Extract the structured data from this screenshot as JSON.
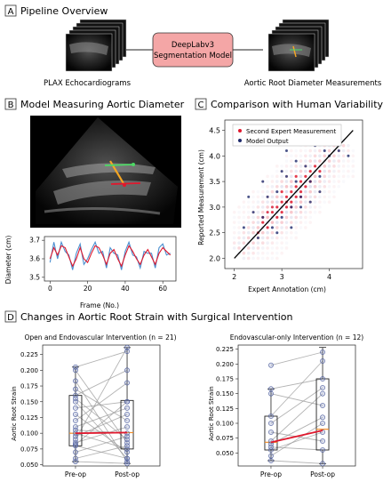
{
  "panelA": {
    "letter": "A",
    "title": "Pipeline Overview",
    "input_label": "PLAX Echocardiograms",
    "model_label": [
      "DeepLabv3",
      "Segmentation Model"
    ],
    "output_label": "Aortic Root Diameter Measurements",
    "model_fill": "#f4a6a6"
  },
  "panelB": {
    "letter": "B",
    "title": "Model Measuring Aortic Diameter",
    "trace_chart": {
      "ylabel": "Diameter (cm)",
      "xlabel": "Frame (No.)",
      "xlim": [
        -3,
        67
      ],
      "ylim": [
        3.48,
        3.72
      ],
      "xticks": [
        0,
        20,
        40,
        60
      ],
      "yticks": [
        3.5,
        3.6,
        3.7
      ],
      "xtick_labels": [
        "0",
        "20",
        "40",
        "60"
      ],
      "ytick_labels": [
        "3.5",
        "3.6",
        "3.7"
      ]
    }
  },
  "panelC": {
    "letter": "C",
    "title": "Comparison with Human Variability",
    "xlabel": "Expert Annotation (cm)",
    "ylabel": "Reported Measurement (cm)",
    "legend": [
      "Second Expert Measurement",
      "Model Output"
    ],
    "xlim": [
      1.8,
      4.7
    ],
    "ylim": [
      1.8,
      4.7
    ],
    "xticks": [
      "2",
      "3",
      "4"
    ],
    "yticks": [
      "2.0",
      "2.5",
      "3.0",
      "3.5",
      "4.0",
      "4.5"
    ],
    "colors": {
      "expert": "#e0182d",
      "model": "#1f2a6b"
    }
  },
  "panelD": {
    "letter": "D",
    "title": "Changes in Aortic Root Strain with Surgical Intervention",
    "left": {
      "title": "Open and Endovascular Intervention (n = 21)",
      "ylabel": "Aortic Root Strain",
      "categories": [
        "Pre-op",
        "Post-op"
      ],
      "yticks": [
        "0.050",
        "0.075",
        "0.100",
        "0.125",
        "0.150",
        "0.175",
        "0.200",
        "0.225"
      ]
    },
    "right": {
      "title": "Endovascular-only Intervention (n = 12)",
      "ylabel": "Aortic Root Strain",
      "categories": [
        "Pre-op",
        "Post-op"
      ],
      "yticks": [
        "0.050",
        "0.075",
        "0.100",
        "0.125",
        "0.150",
        "0.175",
        "0.200",
        "0.225"
      ]
    }
  },
  "chart_data": [
    {
      "type": "line",
      "title": "",
      "xlabel": "Frame (No.)",
      "ylabel": "Diameter (cm)",
      "xlim": [
        -3,
        67
      ],
      "ylim": [
        3.48,
        3.72
      ],
      "series": [
        {
          "color": "#e0182d",
          "x": [
            0,
            2,
            4,
            6,
            8,
            10,
            12,
            14,
            16,
            18,
            20,
            22,
            24,
            26,
            28,
            30,
            32,
            34,
            36,
            38,
            40,
            42,
            44,
            46,
            48,
            50,
            52,
            54,
            56,
            58,
            60,
            62,
            64
          ],
          "y": [
            3.6,
            3.66,
            3.62,
            3.67,
            3.66,
            3.61,
            3.56,
            3.6,
            3.66,
            3.6,
            3.58,
            3.63,
            3.67,
            3.66,
            3.62,
            3.57,
            3.63,
            3.65,
            3.6,
            3.56,
            3.62,
            3.67,
            3.64,
            3.6,
            3.57,
            3.62,
            3.65,
            3.61,
            3.57,
            3.63,
            3.66,
            3.64,
            3.62
          ]
        },
        {
          "color": "#4a8fd0",
          "x": [
            0,
            2,
            4,
            6,
            8,
            10,
            12,
            14,
            16,
            18,
            20,
            22,
            24,
            26,
            28,
            30,
            32,
            34,
            36,
            38,
            40,
            42,
            44,
            46,
            48,
            50,
            52,
            54,
            56,
            58,
            60,
            62,
            64
          ],
          "y": [
            3.58,
            3.69,
            3.6,
            3.69,
            3.64,
            3.62,
            3.54,
            3.63,
            3.68,
            3.57,
            3.6,
            3.65,
            3.69,
            3.63,
            3.64,
            3.55,
            3.66,
            3.63,
            3.62,
            3.54,
            3.64,
            3.69,
            3.62,
            3.61,
            3.55,
            3.64,
            3.63,
            3.63,
            3.55,
            3.66,
            3.68,
            3.62,
            3.63
          ]
        }
      ]
    },
    {
      "type": "scatter",
      "title": "",
      "xlabel": "Expert Annotation (cm)",
      "ylabel": "Reported Measurement (cm)",
      "xlim": [
        1.8,
        4.7
      ],
      "ylim": [
        1.8,
        4.7
      ],
      "fit_line": {
        "x": [
          2.0,
          4.5
        ],
        "y": [
          2.0,
          4.5
        ]
      },
      "series": [
        {
          "name": "Second Expert Measurement",
          "color": "#e0182d",
          "x": [
            2.6,
            2.7,
            2.8,
            2.8,
            2.9,
            3.0,
            3.0,
            3.1,
            3.1,
            3.2,
            3.2,
            3.3,
            3.3,
            3.4,
            3.4,
            3.5,
            3.5,
            3.6,
            2.5,
            2.6,
            3.7,
            3.8,
            2.9,
            3.0,
            3.2,
            3.1,
            3.3,
            3.4,
            2.7,
            3.6
          ],
          "y": [
            2.7,
            2.6,
            2.9,
            3.0,
            2.8,
            3.1,
            2.9,
            3.2,
            3.0,
            3.3,
            3.1,
            3.4,
            3.2,
            3.5,
            3.3,
            3.6,
            3.4,
            3.5,
            2.5,
            2.8,
            3.8,
            3.7,
            3.0,
            3.3,
            3.0,
            3.1,
            3.6,
            3.2,
            2.9,
            3.7
          ]
        },
        {
          "name": "Model Output",
          "color": "#1f2a6b",
          "x": [
            2.2,
            2.4,
            2.5,
            2.6,
            2.7,
            2.8,
            2.9,
            3.0,
            3.1,
            3.2,
            3.3,
            3.4,
            3.5,
            3.6,
            3.7,
            3.8,
            3.9,
            4.0,
            4.2,
            4.4,
            2.3,
            2.6,
            3.0,
            3.2,
            3.4,
            3.6,
            3.8,
            3.1,
            2.9,
            3.3
          ],
          "y": [
            2.6,
            2.9,
            2.4,
            2.8,
            3.2,
            2.6,
            3.3,
            2.8,
            3.6,
            3.0,
            3.9,
            3.2,
            3.8,
            3.5,
            4.2,
            3.6,
            4.1,
            4.0,
            4.1,
            4.0,
            3.2,
            3.5,
            3.7,
            2.6,
            3.0,
            3.1,
            3.3,
            4.1,
            2.5,
            3.5
          ]
        }
      ]
    },
    {
      "type": "box",
      "title": "Open and Endovascular Intervention (n = 21)",
      "ylabel": "Aortic Root Strain",
      "categories": [
        "Pre-op",
        "Post-op"
      ],
      "ylim": [
        0.048,
        0.24
      ],
      "box": [
        {
          "whisker_low": 0.055,
          "q1": 0.08,
          "median": 0.1,
          "q3": 0.16,
          "whisker_high": 0.205
        },
        {
          "whisker_low": 0.052,
          "q1": 0.075,
          "median": 0.101,
          "q3": 0.152,
          "whisker_high": 0.236
        }
      ],
      "mean_line": [
        0.1,
        0.101
      ],
      "pairs": [
        [
          0.205,
          0.23
        ],
        [
          0.2,
          0.085
        ],
        [
          0.183,
          0.055
        ],
        [
          0.17,
          0.12
        ],
        [
          0.16,
          0.2
        ],
        [
          0.155,
          0.09
        ],
        [
          0.15,
          0.06
        ],
        [
          0.14,
          0.15
        ],
        [
          0.13,
          0.07
        ],
        [
          0.12,
          0.18
        ],
        [
          0.11,
          0.14
        ],
        [
          0.105,
          0.1
        ],
        [
          0.1,
          0.075
        ],
        [
          0.095,
          0.13
        ],
        [
          0.09,
          0.236
        ],
        [
          0.085,
          0.11
        ],
        [
          0.082,
          0.15
        ],
        [
          0.08,
          0.06
        ],
        [
          0.07,
          0.095
        ],
        [
          0.06,
          0.08
        ],
        [
          0.055,
          0.052
        ]
      ]
    },
    {
      "type": "box",
      "title": "Endovascular-only Intervention (n = 12)",
      "ylabel": "Aortic Root Strain",
      "categories": [
        "Pre-op",
        "Post-op"
      ],
      "ylim": [
        0.028,
        0.232
      ],
      "box": [
        {
          "whisker_low": 0.037,
          "q1": 0.055,
          "median": 0.068,
          "q3": 0.112,
          "whisker_high": 0.158
        },
        {
          "whisker_low": 0.032,
          "q1": 0.055,
          "median": 0.09,
          "q3": 0.175,
          "whisker_high": 0.228
        }
      ],
      "mean_line": [
        0.068,
        0.088
      ],
      "pairs": [
        [
          0.198,
          0.22
        ],
        [
          0.158,
          0.175
        ],
        [
          0.15,
          0.13
        ],
        [
          0.112,
          0.205
        ],
        [
          0.1,
          0.16
        ],
        [
          0.085,
          0.07
        ],
        [
          0.07,
          0.15
        ],
        [
          0.065,
          0.11
        ],
        [
          0.06,
          0.055
        ],
        [
          0.055,
          0.085
        ],
        [
          0.045,
          0.1
        ],
        [
          0.037,
          0.032
        ]
      ]
    }
  ]
}
